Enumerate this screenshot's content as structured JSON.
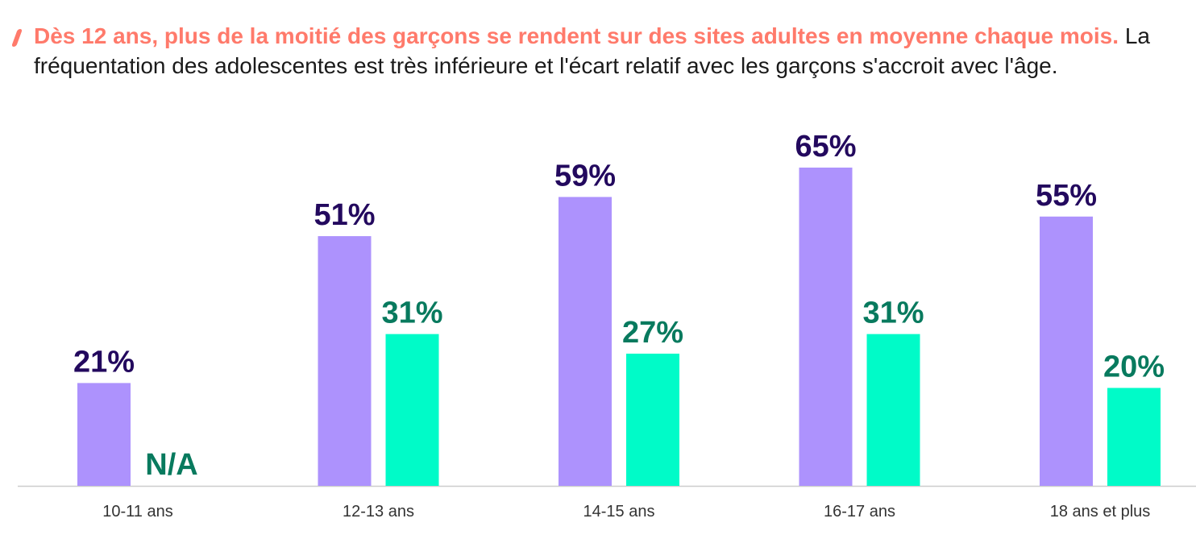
{
  "title": {
    "highlight": "Dès 12 ans, plus de la moitié des garçons se rendent sur des sites adultes en moyenne chaque mois.",
    "body": "La fréquentation des adolescentes est très inférieure et l'écart relatif avec les garçons s'accroit avec l'âge."
  },
  "colors": {
    "accent": "#ff7a6b",
    "boys_bar": "#ad92fd",
    "boys_label": "#23095e",
    "girls_bar": "#00fbc8",
    "girls_label": "#087a5e",
    "axis": "#cccccc",
    "tick": "#333333"
  },
  "chart_data": {
    "type": "bar",
    "categories": [
      "10-11 ans",
      "12-13 ans",
      "14-15 ans",
      "16-17 ans",
      "18 ans et plus"
    ],
    "series": [
      {
        "values": [
          21,
          51,
          59,
          65,
          55
        ],
        "labels": [
          "21%",
          "51%",
          "59%",
          "65%",
          "55%"
        ]
      },
      {
        "values": [
          null,
          31,
          27,
          31,
          20
        ],
        "labels": [
          "N/A",
          "31%",
          "27%",
          "31%",
          "20%"
        ]
      }
    ],
    "ylim": [
      0,
      65
    ],
    "grid": false,
    "legend": "none"
  }
}
